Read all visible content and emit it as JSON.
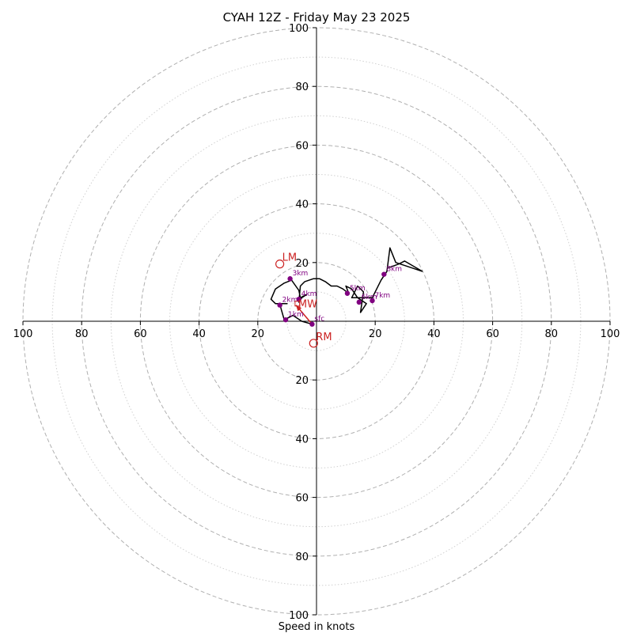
{
  "chart_data": {
    "type": "hodograph",
    "title": "CYAH 12Z - Friday May 23 2025",
    "xlabel": "Speed in knots",
    "rlim": [
      0,
      100
    ],
    "ring_labels": [
      "20",
      "40",
      "60",
      "80",
      "100"
    ],
    "ring_values": [
      20,
      40,
      60,
      80,
      100
    ],
    "minor_ring_values": [
      10,
      30,
      50,
      70,
      90
    ],
    "grid": true,
    "trace": [
      [
        -1.5,
        -1
      ],
      [
        -5,
        0
      ],
      [
        -8,
        2
      ],
      [
        -10,
        1
      ],
      [
        -11,
        0.5
      ],
      [
        -12,
        4
      ],
      [
        -12.5,
        6
      ],
      [
        -10,
        6
      ],
      [
        -14,
        6
      ],
      [
        -15.5,
        7.5
      ],
      [
        -14,
        11
      ],
      [
        -11,
        13
      ],
      [
        -8.5,
        14
      ],
      [
        -6,
        10.5
      ],
      [
        -5.5,
        8
      ],
      [
        -3.5,
        9
      ],
      [
        -5,
        8
      ],
      [
        -6,
        6.5
      ],
      [
        -5.5,
        12
      ],
      [
        -4,
        13.5
      ],
      [
        -1,
        14.5
      ],
      [
        1,
        14.5
      ],
      [
        3,
        13.5
      ],
      [
        5,
        12
      ],
      [
        7,
        12
      ],
      [
        9,
        11
      ],
      [
        11,
        9.5
      ],
      [
        10,
        12
      ],
      [
        12,
        11
      ],
      [
        14,
        8
      ],
      [
        17,
        6
      ],
      [
        15,
        3
      ],
      [
        16,
        10
      ],
      [
        14,
        12
      ],
      [
        12,
        8
      ],
      [
        19,
        8
      ],
      [
        22,
        14
      ],
      [
        24,
        17
      ],
      [
        25,
        25
      ],
      [
        27,
        20
      ],
      [
        36,
        17
      ],
      [
        30,
        20.5
      ],
      [
        28,
        19.5
      ],
      [
        24,
        18
      ]
    ],
    "levels": [
      {
        "label": "sfc",
        "u": -1.5,
        "v": -1
      },
      {
        "label": "1km",
        "u": -10.5,
        "v": 0.5
      },
      {
        "label": "2km",
        "u": -12.5,
        "v": 5.5
      },
      {
        "label": "3km",
        "u": -9,
        "v": 14.5
      },
      {
        "label": "4km",
        "u": -6,
        "v": 7.5
      },
      {
        "label": "5km",
        "u": 10.5,
        "v": 9.5
      },
      {
        "label": "6km",
        "u": 14.5,
        "v": 6.5
      },
      {
        "label": "7km",
        "u": 19,
        "v": 7
      },
      {
        "label": "8km",
        "u": 23,
        "v": 16
      }
    ],
    "storm_motion": [
      {
        "label": "LM",
        "u": -12.5,
        "v": 19.5
      },
      {
        "label": "RM",
        "u": -1,
        "v": -7.5
      }
    ],
    "mean_wind": {
      "label": "MW",
      "u": -6.5,
      "v": 6
    },
    "shear_vector": {
      "from": [
        -1.5,
        -1
      ],
      "to": [
        -7,
        5.5
      ]
    },
    "colors": {
      "trace": "#000000",
      "levels": "#800080",
      "storm_motion": "#cc2222",
      "grid": "#b0b0b0"
    }
  }
}
